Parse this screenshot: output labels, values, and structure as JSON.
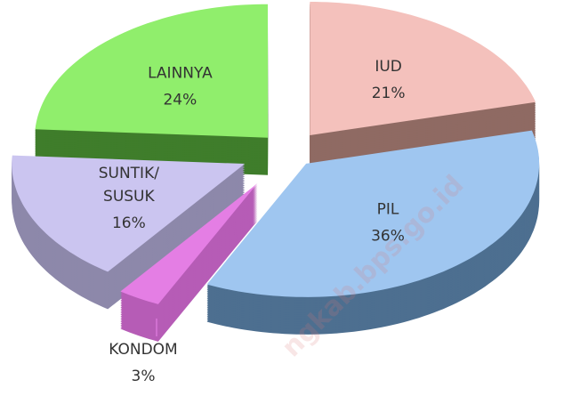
{
  "chart_data": {
    "type": "pie",
    "categories": [
      "IUD",
      "PIL",
      "KONDOM",
      "SUNTIK/SUSUK",
      "LAINNYA"
    ],
    "values": [
      21,
      36,
      3,
      16,
      24
    ],
    "value_labels": [
      "21%",
      "36%",
      "3%",
      "16%",
      "24%"
    ],
    "colors": [
      "#f4c1bc",
      "#9fc6f0",
      "#e47ee4",
      "#cbc5f0",
      "#90ee6c"
    ],
    "side_colors": [
      "#8f6a63",
      "#4d6f90",
      "#b65cb6",
      "#8d88aa",
      "#3f7d2b"
    ],
    "watermark": "ngkab.bps.go.id"
  }
}
